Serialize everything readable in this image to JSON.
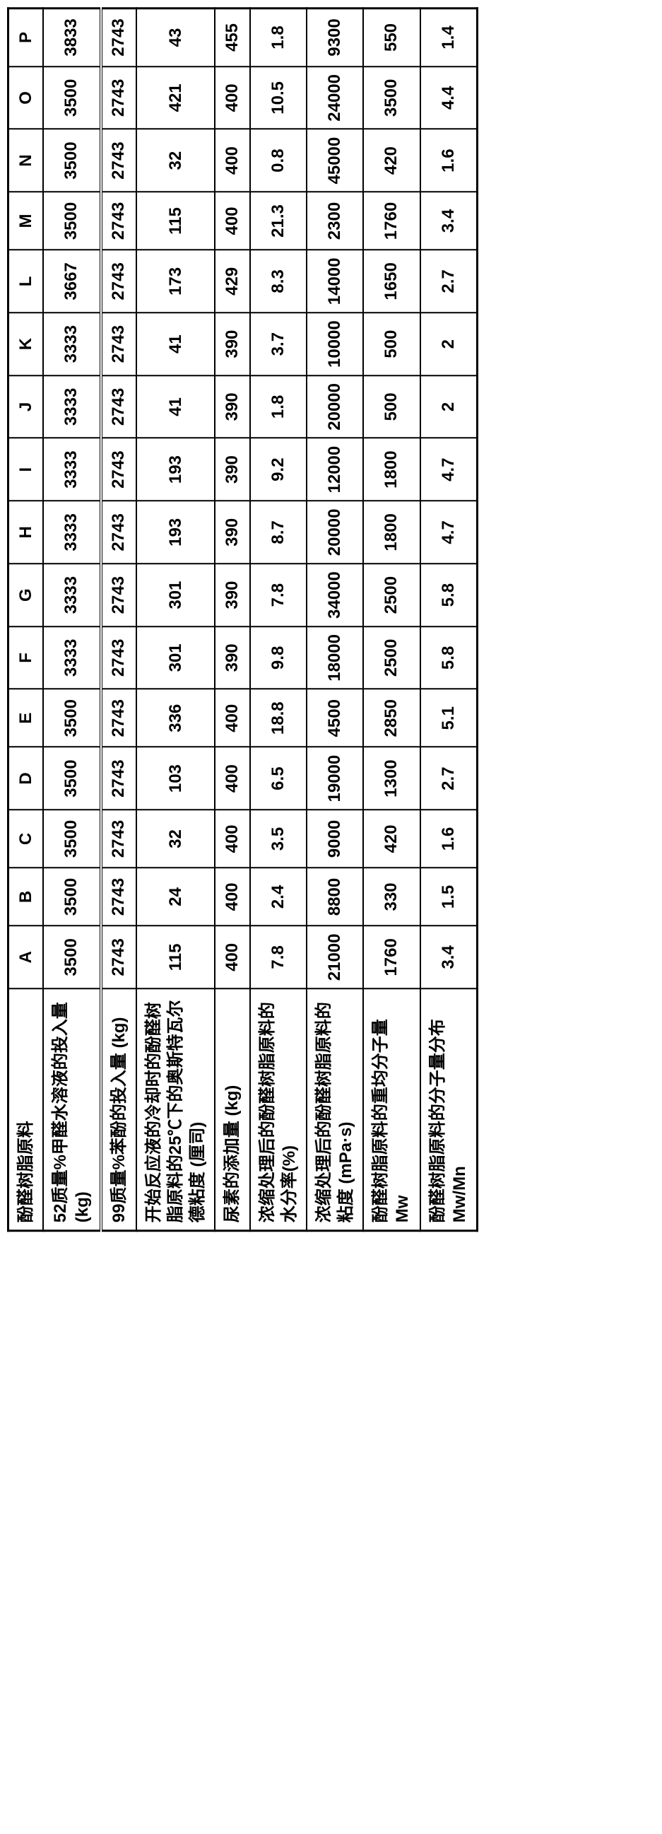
{
  "corner": "酚醛树脂原料",
  "cols": [
    "A",
    "B",
    "C",
    "D",
    "E",
    "F",
    "G",
    "H",
    "I",
    "J",
    "K",
    "L",
    "M",
    "N",
    "O",
    "P"
  ],
  "rows": [
    {
      "label": "52质量%甲醛水溶液的投入量 (kg)",
      "v": [
        "3500",
        "3500",
        "3500",
        "3500",
        "3500",
        "3333",
        "3333",
        "3333",
        "3333",
        "3333",
        "3333",
        "3667",
        "3500",
        "3500",
        "3500",
        "3833"
      ]
    },
    {
      "label": "99质量%苯酚的投入量 (kg)",
      "v": [
        "2743",
        "2743",
        "2743",
        "2743",
        "2743",
        "2743",
        "2743",
        "2743",
        "2743",
        "2743",
        "2743",
        "2743",
        "2743",
        "2743",
        "2743",
        "2743"
      ]
    },
    {
      "label": "开始反应液的冷却时的酚醛树脂原料的25℃下的奥斯特瓦尔德粘度 (厘司)",
      "v": [
        "115",
        "24",
        "32",
        "103",
        "336",
        "301",
        "301",
        "193",
        "193",
        "41",
        "41",
        "173",
        "115",
        "32",
        "421",
        "43"
      ]
    },
    {
      "label": "尿素的添加量 (kg)",
      "v": [
        "400",
        "400",
        "400",
        "400",
        "400",
        "390",
        "390",
        "390",
        "390",
        "390",
        "390",
        "429",
        "400",
        "400",
        "400",
        "455"
      ]
    },
    {
      "label": "浓缩处理后的酚醛树脂原料的水分率(%)",
      "v": [
        "7.8",
        "2.4",
        "3.5",
        "6.5",
        "18.8",
        "9.8",
        "7.8",
        "8.7",
        "9.2",
        "1.8",
        "3.7",
        "8.3",
        "21.3",
        "0.8",
        "10.5",
        "1.8"
      ]
    },
    {
      "label": "浓缩处理后的酚醛树脂原料的粘度 (mPa·s)",
      "v": [
        "21000",
        "8800",
        "9000",
        "19000",
        "4500",
        "18000",
        "34000",
        "20000",
        "12000",
        "20000",
        "10000",
        "14000",
        "2300",
        "45000",
        "24000",
        "9300"
      ]
    },
    {
      "label": "酚醛树脂原料的重均分子量Mw",
      "v": [
        "1760",
        "330",
        "420",
        "1300",
        "2850",
        "2500",
        "2500",
        "1800",
        "1800",
        "500",
        "500",
        "1650",
        "1760",
        "420",
        "3500",
        "550"
      ]
    },
    {
      "label": "酚醛树脂原料的分子量分布Mw/Mn",
      "v": [
        "3.4",
        "1.5",
        "1.6",
        "2.7",
        "5.1",
        "5.8",
        "5.8",
        "4.7",
        "4.7",
        "2",
        "2",
        "2.7",
        "3.4",
        "1.6",
        "4.4",
        "1.4"
      ]
    }
  ]
}
